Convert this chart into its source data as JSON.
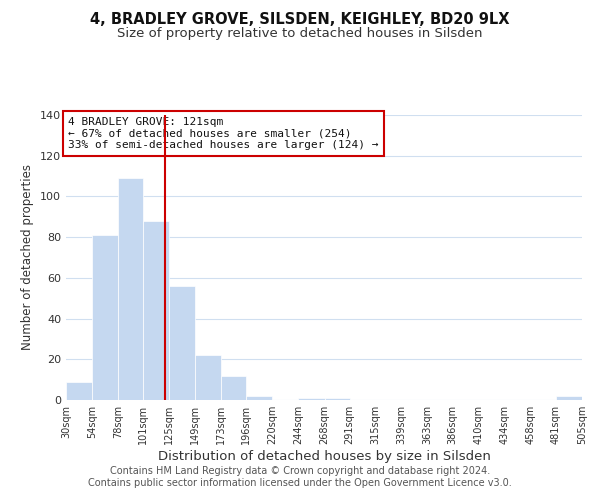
{
  "title": "4, BRADLEY GROVE, SILSDEN, KEIGHLEY, BD20 9LX",
  "subtitle": "Size of property relative to detached houses in Silsden",
  "xlabel": "Distribution of detached houses by size in Silsden",
  "ylabel": "Number of detached properties",
  "bin_edges": [
    30,
    54,
    78,
    101,
    125,
    149,
    173,
    196,
    220,
    244,
    268,
    291,
    315,
    339,
    363,
    386,
    410,
    434,
    458,
    481,
    505
  ],
  "bar_heights": [
    9,
    81,
    109,
    88,
    56,
    22,
    12,
    2,
    0,
    1,
    1,
    0,
    0,
    0,
    0,
    0,
    0,
    0,
    0,
    2
  ],
  "bar_color": "#c5d8f0",
  "bar_edge_color": "#ffffff",
  "vline_x": 121,
  "vline_color": "#cc0000",
  "annotation_text": "4 BRADLEY GROVE: 121sqm\n← 67% of detached houses are smaller (254)\n33% of semi-detached houses are larger (124) →",
  "annotation_box_color": "#ffffff",
  "annotation_box_edge_color": "#cc0000",
  "ylim": [
    0,
    140
  ],
  "xlim": [
    30,
    505
  ],
  "tick_labels": [
    "30sqm",
    "54sqm",
    "78sqm",
    "101sqm",
    "125sqm",
    "149sqm",
    "173sqm",
    "196sqm",
    "220sqm",
    "244sqm",
    "268sqm",
    "291sqm",
    "315sqm",
    "339sqm",
    "363sqm",
    "386sqm",
    "410sqm",
    "434sqm",
    "458sqm",
    "481sqm",
    "505sqm"
  ],
  "tick_positions": [
    30,
    54,
    78,
    101,
    125,
    149,
    173,
    196,
    220,
    244,
    268,
    291,
    315,
    339,
    363,
    386,
    410,
    434,
    458,
    481,
    505
  ],
  "footer_text": "Contains HM Land Registry data © Crown copyright and database right 2024.\nContains public sector information licensed under the Open Government Licence v3.0.",
  "background_color": "#ffffff",
  "grid_color": "#d0dff0",
  "title_fontsize": 10.5,
  "subtitle_fontsize": 9.5,
  "xlabel_fontsize": 9.5,
  "ylabel_fontsize": 8.5,
  "tick_fontsize": 7,
  "footer_fontsize": 7,
  "annot_fontsize": 8
}
